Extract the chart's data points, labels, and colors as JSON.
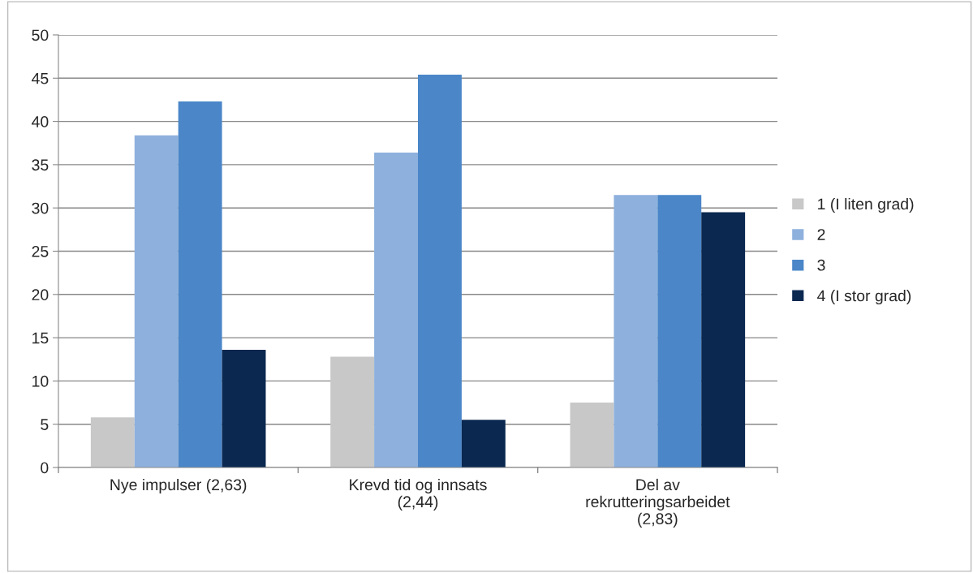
{
  "chart_data": {
    "type": "bar",
    "categories": [
      "Nye impulser (2,63)",
      "Krevd tid og innsats\n(2,44)",
      "Del av\nrekrutteringsarbeidet\n(2,83)"
    ],
    "series": [
      {
        "name": "1 (I liten grad)",
        "color": "#c8c8c8",
        "values": [
          5.8,
          12.8,
          7.5
        ]
      },
      {
        "name": "2",
        "color": "#8eb0dd",
        "values": [
          38.4,
          36.4,
          31.5
        ]
      },
      {
        "name": "3",
        "color": "#4a86c8",
        "values": [
          42.3,
          45.4,
          31.5
        ]
      },
      {
        "name": "4 (I stor grad)",
        "color": "#0a2850",
        "values": [
          13.6,
          5.5,
          29.5
        ]
      }
    ],
    "ylim": [
      0,
      50
    ],
    "yticks": [
      0,
      5,
      10,
      15,
      20,
      25,
      30,
      35,
      40,
      45,
      50
    ],
    "grid": "y",
    "legend": "right"
  }
}
